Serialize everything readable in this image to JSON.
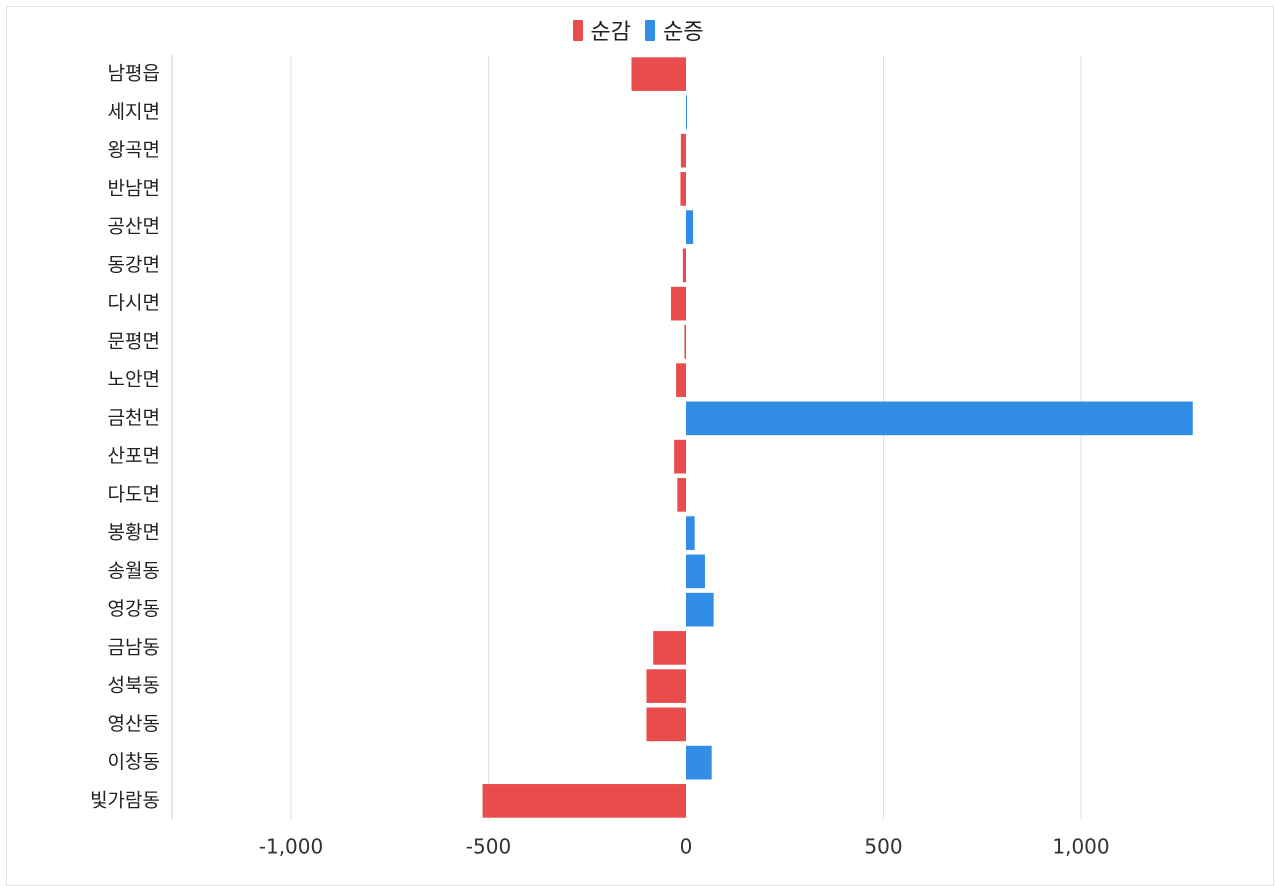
{
  "colors": {
    "decrease": "#e84c4c",
    "increase": "#318de6",
    "grid": "#e2e2e2",
    "axis": "#cfcfcf"
  },
  "legend": {
    "decrease_label": "순감",
    "increase_label": "순증"
  },
  "chart_data": {
    "type": "bar",
    "orientation": "horizontal",
    "categories": [
      "남평읍",
      "세지면",
      "왕곡면",
      "반남면",
      "공산면",
      "동강면",
      "다시면",
      "문평면",
      "노안면",
      "금천면",
      "산포면",
      "다도면",
      "봉황면",
      "송월동",
      "영강동",
      "금남동",
      "성북동",
      "영산동",
      "이창동",
      "빛가람동"
    ],
    "values": [
      -138,
      2,
      -13,
      -14,
      18,
      -8,
      -38,
      -4,
      -25,
      1283,
      -30,
      -22,
      22,
      48,
      70,
      -83,
      -100,
      -100,
      65,
      -515
    ],
    "xlim": [
      -1300,
      1300
    ],
    "xticks": [
      -1000,
      -500,
      0,
      500,
      1000
    ],
    "xtick_labels": [
      "-1,000",
      "-500",
      "0",
      "500",
      "1,000"
    ],
    "grid": true,
    "legend_position": "top-center",
    "series": [
      {
        "name": "순감",
        "color": "#e84c4c"
      },
      {
        "name": "순증",
        "color": "#318de6"
      }
    ]
  }
}
